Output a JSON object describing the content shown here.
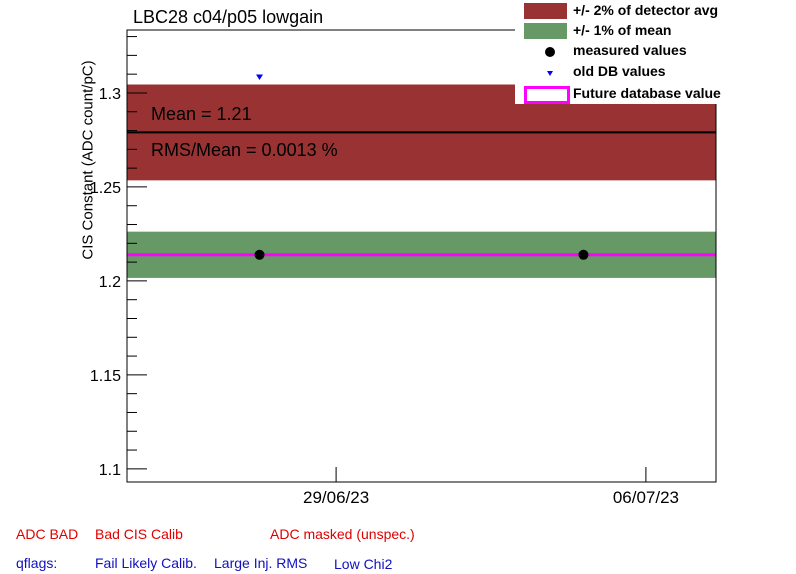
{
  "chart_data": {
    "type": "scatter",
    "title": "LBC28 c04/p05 lowgain",
    "ylabel": "CIS Constant (ADC count/pC)",
    "xlabel": "",
    "ylim": [
      1.093,
      1.3335
    ],
    "yticks": [
      1.1,
      1.15,
      1.2,
      1.25,
      1.3
    ],
    "ytick_labels": [
      "1.1",
      "1.15",
      "1.2",
      "1.25",
      "1.3"
    ],
    "xlim": [
      0,
      1
    ],
    "xticks": [
      {
        "x": 0.355,
        "label": "29/06/23"
      },
      {
        "x": 0.881,
        "label": "06/07/23"
      }
    ],
    "bands": [
      {
        "name": "+/- 2% of detector avg",
        "color": "#993333",
        "y0": 1.2535,
        "y1": 1.3045
      },
      {
        "name": "+/- 1% of mean",
        "color": "#669966",
        "y0": 1.2016,
        "y1": 1.2262
      }
    ],
    "mean_line": {
      "y": 1.279,
      "color": "#000000"
    },
    "future_line": {
      "y": 1.2139,
      "color": "#ff00ff",
      "name": "Future database value"
    },
    "series": [
      {
        "name": "measured values",
        "marker": "circle",
        "color": "#000000",
        "points": [
          {
            "x": 0.225,
            "y": 1.2139
          },
          {
            "x": 0.775,
            "y": 1.2139
          }
        ]
      },
      {
        "name": "old DB values",
        "marker": "triangle-down",
        "color": "#0000ff",
        "points": [
          {
            "x": 0.225,
            "y": 1.3085
          }
        ]
      }
    ],
    "annotations": [
      "Mean = 1.21",
      "RMS/Mean = 0.0013 %"
    ],
    "legend_position": "top-right"
  },
  "flags": {
    "row1": [
      "ADC BAD",
      "Bad CIS Calib",
      "ADC masked (unspec.)"
    ],
    "qflags_label": "qflags:",
    "row2": [
      "Fail Likely Calib.",
      "Large Inj. RMS",
      "Low Chi2"
    ]
  },
  "colors": {
    "flag_red": "#e00000",
    "flag_blue": "#1010c0"
  }
}
